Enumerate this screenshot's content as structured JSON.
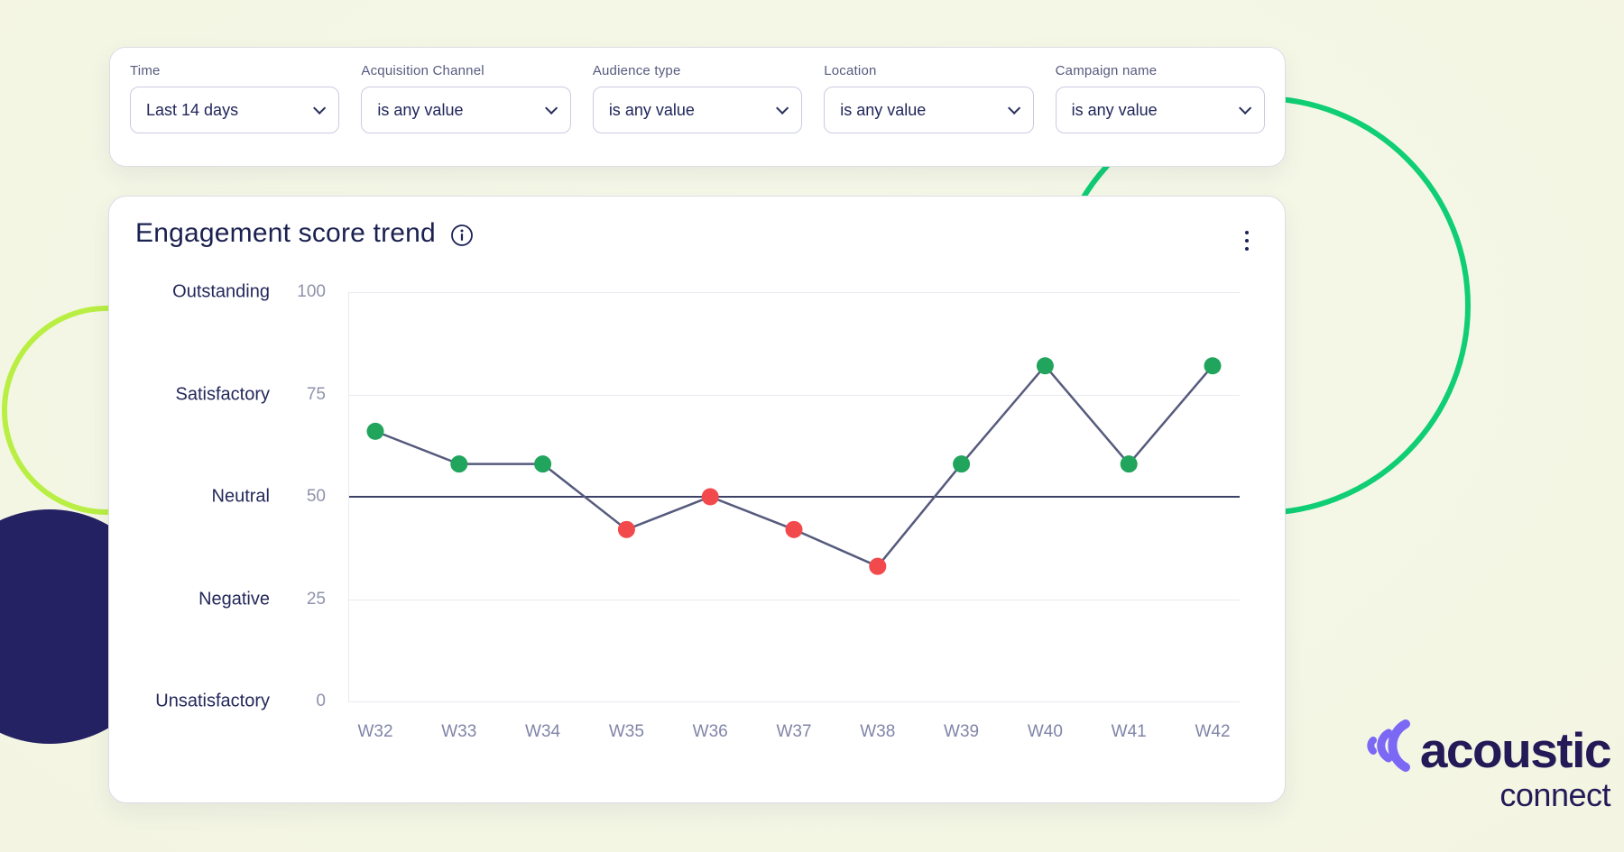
{
  "filter_bar": {
    "filters": [
      {
        "id": "time",
        "label": "Time",
        "value": "Last 14 days"
      },
      {
        "id": "acquisition-channel",
        "label": "Acquisition Channel",
        "value": "is any value"
      },
      {
        "id": "audience-type",
        "label": "Audience type",
        "value": "is any value"
      },
      {
        "id": "location",
        "label": "Location",
        "value": "is any value"
      },
      {
        "id": "campaign-name",
        "label": "Campaign name",
        "value": "is any value"
      }
    ]
  },
  "chart_card": {
    "title": "Engagement score trend"
  },
  "chart_data": {
    "type": "line",
    "title": "Engagement score trend",
    "categories": [
      "W32",
      "W33",
      "W34",
      "W35",
      "W36",
      "W37",
      "W38",
      "W39",
      "W40",
      "W41",
      "W42"
    ],
    "values": [
      66,
      58,
      58,
      42,
      50,
      42,
      33,
      58,
      82,
      58,
      82
    ],
    "ylim": [
      0,
      100
    ],
    "y_ticks": [
      {
        "value": 100,
        "label": "Outstanding"
      },
      {
        "value": 75,
        "label": "Satisfactory"
      },
      {
        "value": 50,
        "label": "Neutral"
      },
      {
        "value": 25,
        "label": "Negative"
      },
      {
        "value": 0,
        "label": "Unsatisfactory"
      }
    ],
    "neutral_threshold": 50,
    "grid": "horizontal",
    "legend": "none",
    "colors": {
      "point_above_threshold": "#21a45c",
      "point_at_or_below_threshold": "#f2494c",
      "line": "#565b7d",
      "neutral_line": "#3d4166",
      "gridline": "#e9eaf1"
    }
  },
  "logo": {
    "brand": "acoustic",
    "product": "connect",
    "mark_color": "#7b68f5",
    "brand_color": "#231a57",
    "decor_green": "#0fce74",
    "decor_lime": "#b9ef44",
    "decor_navy": "#252263"
  }
}
